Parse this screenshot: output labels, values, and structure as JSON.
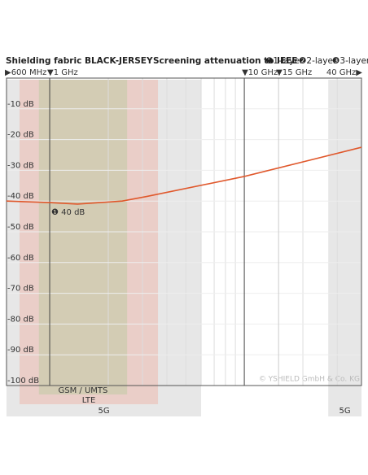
{
  "chart_data": {
    "type": "line",
    "title": "Shielding fabric BLACK-JERSEY",
    "subtitle": "Screening attenuation to IEEE",
    "legend": [
      "❶1-layer",
      "❷2-layer",
      "❸3-layer"
    ],
    "x": [
      600,
      1000,
      1390,
      2360,
      3150,
      10000,
      40000
    ],
    "series": [
      {
        "color": "#e0582c",
        "values": [
          -40,
          -40.5,
          -41,
          -40,
          -38.5,
          -32,
          -22.5
        ]
      }
    ],
    "xscale": "log",
    "xlim": [
      600,
      40000
    ],
    "xticks": [
      {
        "value": 600,
        "label": "▶600 MHz"
      },
      {
        "value": 1000,
        "label": "▼1 GHz"
      },
      {
        "value": 10000,
        "label": "▼10 GHz"
      },
      {
        "value": 15000,
        "label": "▼15 GHz"
      },
      {
        "value": 40000,
        "label": "40 GHz▶"
      }
    ],
    "xminor": [
      2000,
      3000,
      4000,
      5000,
      6000,
      7000,
      8000,
      9000,
      20000,
      30000
    ],
    "ylim": [
      -100,
      0
    ],
    "yticks": [
      {
        "value": -10,
        "label": "-10 dB"
      },
      {
        "value": -20,
        "label": "-20 dB"
      },
      {
        "value": -30,
        "label": "-30 dB"
      },
      {
        "value": -40,
        "label": "-40 dB"
      },
      {
        "value": -50,
        "label": "-50 dB"
      },
      {
        "value": -60,
        "label": "-60 dB"
      },
      {
        "value": -70,
        "label": "-70 dB"
      },
      {
        "value": -80,
        "label": "-80 dB"
      },
      {
        "value": -90,
        "label": "-90 dB"
      },
      {
        "value": -100,
        "label": "-100 dB"
      }
    ],
    "annotation": {
      "text": "❶ 40 dB",
      "x": 1000,
      "y": -40
    },
    "bands": [
      {
        "label": "5G",
        "range": [
          600,
          6000
        ],
        "color": "#bbbbbb"
      },
      {
        "label": "5G",
        "range": [
          27000,
          40000
        ],
        "color": "#bbbbbb"
      },
      {
        "label": "LTE",
        "range": [
          700,
          3600
        ],
        "color": "#f2a090"
      },
      {
        "label": "GSM / UMTS",
        "range": [
          880,
          2500
        ],
        "color": "#a8c890"
      }
    ],
    "copyright": "© YSHIELD GmbH & Co. KG"
  }
}
